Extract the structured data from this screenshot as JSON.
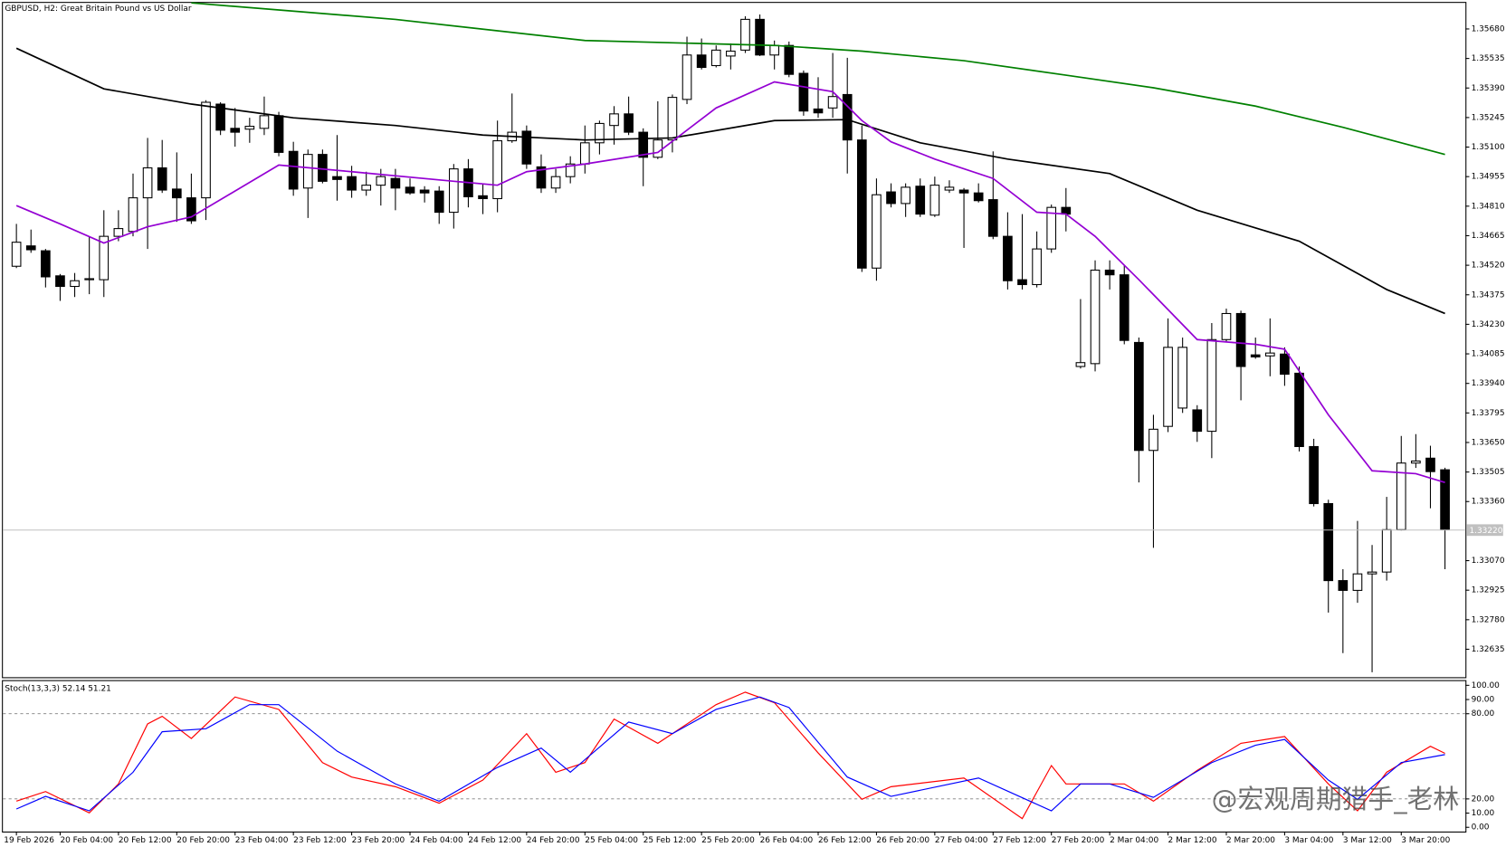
{
  "chart_data": [
    {
      "type": "candlestick",
      "title": "GBPUSD, H2:  Great Britain Pound vs US Dollar",
      "categories": [
        "19 Feb 2026",
        null,
        null,
        "20 Feb 04:00",
        null,
        null,
        null,
        "20 Feb 12:00",
        null,
        null,
        null,
        "20 Feb 20:00",
        null,
        null,
        null,
        "23 Feb 04:00",
        null,
        null,
        null,
        "23 Feb 12:00",
        null,
        null,
        null,
        "23 Feb 20:00",
        null,
        null,
        null,
        "24 Feb 04:00",
        null,
        null,
        null,
        "24 Feb 12:00",
        null,
        null,
        null,
        "24 Feb 20:00",
        null,
        null,
        null,
        "25 Feb 04:00",
        null,
        null,
        null,
        "25 Feb 12:00",
        null,
        null,
        null,
        "25 Feb 20:00",
        null,
        null,
        null,
        "26 Feb 04:00",
        null,
        null,
        null,
        "26 Feb 12:00",
        null,
        null,
        null,
        "26 Feb 20:00",
        null,
        null,
        null,
        "27 Feb 04:00",
        null,
        null,
        null,
        "27 Feb 12:00",
        null,
        null,
        null,
        "27 Feb 20:00",
        null,
        null,
        null,
        "2 Mar 04:00",
        null,
        null,
        null,
        "2 Mar 12:00",
        null,
        null,
        null,
        "2 Mar 20:00",
        null,
        null,
        null,
        "3 Mar 04:00",
        null,
        null,
        null,
        "3 Mar 12:00",
        null,
        null,
        null,
        "3 Mar 20:00",
        null,
        null,
        null
      ],
      "open": [
        1.34515,
        1.34615,
        1.34591,
        1.34468,
        1.34416,
        1.34449,
        1.34449,
        1.34662,
        1.34686,
        1.34851,
        1.34998,
        1.34894,
        1.34851,
        1.34851,
        1.35311,
        1.35192,
        1.35188,
        1.35192,
        1.35254,
        1.35079,
        1.34899,
        1.35064,
        1.34955,
        1.34955,
        1.34889,
        1.34913,
        1.34946,
        1.34903,
        1.34889,
        1.34884,
        1.3478,
        1.34993,
        1.34861,
        1.34847,
        1.35131,
        1.35178,
        1.35003,
        1.34899,
        1.34955,
        1.35017,
        1.35121,
        1.35206,
        1.35263,
        1.35173,
        1.3505,
        1.35135,
        1.35334,
        1.35552,
        1.355,
        1.35547,
        1.35576,
        1.35727,
        1.35552,
        1.35599,
        1.35462,
        1.35287,
        1.35292,
        1.35358,
        1.35135,
        1.34506,
        1.3488,
        1.34823,
        1.34908,
        1.34766,
        1.34889,
        1.34889,
        1.34875,
        1.34842,
        1.34662,
        1.34449,
        1.34425,
        1.346,
        1.34804,
        1.34023,
        1.34037,
        1.34496,
        1.34473,
        1.34141,
        1.33611,
        1.33729,
        1.33819,
        1.3381,
        1.33705,
        1.34155,
        1.34283,
        1.3408,
        1.34075,
        1.34084,
        1.3399,
        1.3363,
        1.3335,
        1.32972,
        1.32924,
        1.33005,
        1.33014,
        1.33222,
        1.33549,
        1.33573,
        1.33516
      ],
      "high": [
        1.34723,
        1.34695,
        1.346,
        1.34477,
        1.34482,
        1.34662,
        1.3479,
        1.3479,
        1.3497,
        1.35145,
        1.35135,
        1.35074,
        1.3497,
        1.3533,
        1.3532,
        1.35292,
        1.35244,
        1.35348,
        1.35273,
        1.35126,
        1.35088,
        1.35088,
        1.35159,
        1.35008,
        1.34979,
        1.34993,
        1.34993,
        1.34946,
        1.34908,
        1.34908,
        1.35017,
        1.35041,
        1.34922,
        1.3523,
        1.35363,
        1.35206,
        1.35064,
        1.34993,
        1.35055,
        1.35206,
        1.3523,
        1.35301,
        1.35348,
        1.35192,
        1.35325,
        1.35358,
        1.35642,
        1.35633,
        1.35599,
        1.35609,
        1.35742,
        1.35751,
        1.35623,
        1.35618,
        1.35476,
        1.35443,
        1.35562,
        1.35538,
        1.35206,
        1.34946,
        1.34922,
        1.34922,
        1.34946,
        1.34955,
        1.34937,
        1.34899,
        1.34922,
        1.35079,
        1.3478,
        1.34771,
        1.34686,
        1.34818,
        1.34899,
        1.34354,
        1.34544,
        1.34544,
        1.3452,
        1.34165,
        1.33786,
        1.34259,
        1.34165,
        1.33833,
        1.34236,
        1.34307,
        1.34297,
        1.34165,
        1.34259,
        1.34117,
        1.34023,
        1.33668,
        1.33369,
        1.33028,
        1.33265,
        1.33147,
        1.33383,
        1.33682,
        1.33691,
        1.33634,
        1.33526
      ],
      "low": [
        1.34506,
        1.34581,
        1.34411,
        1.34345,
        1.34364,
        1.34378,
        1.34364,
        1.34638,
        1.34662,
        1.346,
        1.34875,
        1.34733,
        1.34723,
        1.34742,
        1.35159,
        1.35102,
        1.35121,
        1.35159,
        1.35055,
        1.34861,
        1.34752,
        1.34922,
        1.34837,
        1.34851,
        1.34861,
        1.34813,
        1.3479,
        1.34866,
        1.34828,
        1.34723,
        1.347,
        1.34804,
        1.34771,
        1.3478,
        1.35121,
        1.34993,
        1.34875,
        1.34875,
        1.34922,
        1.3497,
        1.35064,
        1.35112,
        1.35159,
        1.34908,
        1.35041,
        1.35074,
        1.35311,
        1.35481,
        1.35491,
        1.35481,
        1.35562,
        1.35547,
        1.35481,
        1.35443,
        1.35254,
        1.35244,
        1.35244,
        1.3497,
        1.34487,
        1.34444,
        1.34804,
        1.34757,
        1.34757,
        1.34757,
        1.34875,
        1.34605,
        1.34828,
        1.34648,
        1.34401,
        1.34401,
        1.34411,
        1.34581,
        1.34686,
        1.34013,
        1.33999,
        1.34401,
        1.34132,
        1.33454,
        1.33133,
        1.33701,
        1.33795,
        1.33653,
        1.33573,
        1.34141,
        1.33857,
        1.34061,
        1.33975,
        1.33928,
        1.33606,
        1.33336,
        1.32815,
        1.32616,
        1.32863,
        1.32522,
        1.32972,
        1.33218,
        1.33525,
        1.33327,
        1.33028
      ],
      "close": [
        1.34633,
        1.34596,
        1.34463,
        1.34416,
        1.34444,
        1.34454,
        1.34662,
        1.347,
        1.34851,
        1.34998,
        1.34889,
        1.34851,
        1.34738,
        1.3532,
        1.35183,
        1.35173,
        1.35202,
        1.35254,
        1.35074,
        1.34894,
        1.35064,
        1.34932,
        1.34941,
        1.34889,
        1.34913,
        1.34955,
        1.34899,
        1.34875,
        1.34875,
        1.3478,
        1.34993,
        1.34856,
        1.34847,
        1.35131,
        1.35173,
        1.35017,
        1.34899,
        1.34955,
        1.35017,
        1.35121,
        1.35216,
        1.35263,
        1.35173,
        1.3505,
        1.35135,
        1.35344,
        1.35552,
        1.35491,
        1.35576,
        1.35571,
        1.35727,
        1.35552,
        1.35599,
        1.35457,
        1.35277,
        1.35268,
        1.35348,
        1.35135,
        1.34506,
        1.34866,
        1.34823,
        1.34903,
        1.34771,
        1.34913,
        1.34903,
        1.34875,
        1.34837,
        1.34662,
        1.34444,
        1.34425,
        1.346,
        1.34804,
        1.34771,
        1.34042,
        1.34496,
        1.34473,
        1.34151,
        1.33611,
        1.33715,
        1.34117,
        1.34117,
        1.33705,
        1.34155,
        1.34283,
        1.34023,
        1.3407,
        1.34089,
        1.33985,
        1.3363,
        1.3335,
        1.32972,
        1.32924,
        1.33005,
        1.33014,
        1.33222,
        1.33549,
        1.33559,
        1.33507,
        1.33222
      ],
      "up_color": "#ffffff",
      "down_color": "#000000",
      "wick_color": "#000000",
      "overlays": [
        {
          "color": "#008000",
          "x": [
            12,
            26,
            39,
            52,
            58,
            65,
            72,
            78,
            85,
            91,
            98
          ],
          "values": [
            1.35808,
            1.35727,
            1.35623,
            1.35599,
            1.35571,
            1.35524,
            1.35453,
            1.35391,
            1.35301,
            1.35197,
            1.35064
          ]
        },
        {
          "color": "#000000",
          "x": [
            0,
            6,
            12,
            19,
            26,
            32,
            39,
            45,
            52,
            57,
            62,
            68,
            75,
            81,
            88,
            94,
            98
          ],
          "values": [
            1.35585,
            1.35386,
            1.35311,
            1.35244,
            1.35206,
            1.35159,
            1.35135,
            1.35145,
            1.3523,
            1.35235,
            1.35121,
            1.35041,
            1.3497,
            1.3479,
            1.34638,
            1.34401,
            1.34283
          ]
        },
        {
          "color": "#9400d3",
          "x": [
            0,
            3,
            6,
            9,
            12,
            18,
            23,
            30,
            33,
            35,
            39,
            44,
            48,
            52,
            56,
            58,
            60,
            63,
            67,
            70,
            72,
            74,
            77,
            81,
            85,
            87,
            90,
            93,
            96,
            98
          ],
          "values": [
            1.34813,
            1.34723,
            1.34629,
            1.34709,
            1.34757,
            1.35012,
            1.34979,
            1.34932,
            1.34913,
            1.34979,
            1.35017,
            1.35074,
            1.35292,
            1.3542,
            1.35372,
            1.3523,
            1.35126,
            1.35041,
            1.34946,
            1.3478,
            1.34771,
            1.34662,
            1.34449,
            1.34155,
            1.34132,
            1.34108,
            1.33786,
            1.33511,
            1.33497,
            1.33454
          ]
        }
      ],
      "current_price": {
        "value": 1.3322,
        "label": "1.33220"
      },
      "ylim": [
        1.32493,
        1.35822
      ],
      "yticks": [
        {
          "value": 1.3568,
          "label": "1.35680"
        },
        1.35535,
        {
          "value": 1.3539,
          "label": "1.35390"
        },
        1.35245,
        {
          "value": 1.351,
          "label": "1.35100"
        },
        1.34955,
        {
          "value": 1.3481,
          "label": "1.34810"
        },
        1.34665,
        {
          "value": 1.3452,
          "label": "1.34520"
        },
        1.34375,
        {
          "value": 1.3423,
          "label": "1.34230"
        },
        1.34085,
        {
          "value": 1.3394,
          "label": "1.33940"
        },
        1.33795,
        {
          "value": 1.3365,
          "label": "1.33650"
        },
        1.33505,
        {
          "value": 1.3336,
          "label": "1.33360"
        },
        {
          "value": 1.3307,
          "label": "1.33070"
        },
        1.32925,
        {
          "value": 1.3278,
          "label": "1.32780"
        },
        1.32635
      ]
    },
    {
      "type": "line",
      "title": "Stoch(13,3,3) 52.14 51.21",
      "series": [
        {
          "color": "#ff0000",
          "x": [
            0,
            2,
            5,
            7,
            9,
            10,
            12,
            15,
            18,
            21,
            23,
            26,
            29,
            32,
            35,
            37,
            39,
            41,
            44,
            48,
            50,
            52,
            55,
            58,
            60,
            65,
            69,
            71,
            72,
            76,
            78,
            81,
            84,
            87,
            90,
            92,
            94,
            97,
            98
          ],
          "values": [
            18.4,
            25.2,
            10.2,
            30.6,
            72.8,
            78.2,
            62.6,
            91.8,
            83.0,
            45.6,
            35.4,
            28.6,
            17.0,
            33.3,
            66.0,
            38.8,
            45.6,
            76.2,
            59.2,
            86.4,
            95.2,
            87.8,
            52.4,
            19.7,
            28.6,
            34.7,
            6.1,
            43.5,
            30.6,
            30.6,
            18.4,
            40.1,
            59.2,
            63.9,
            30.6,
            11.6,
            38.8,
            57.1,
            52.14
          ]
        },
        {
          "color": "#0000ff",
          "x": [
            0,
            2,
            5,
            8,
            10,
            13,
            16,
            18,
            22,
            26,
            29,
            33,
            36,
            38,
            42,
            45,
            48,
            51,
            53,
            57,
            60,
            66,
            71,
            73,
            75,
            78,
            82,
            85,
            87,
            90,
            92,
            95,
            98
          ],
          "values": [
            12.9,
            21.8,
            11.6,
            38.8,
            67.3,
            69.4,
            86.4,
            86.4,
            53.7,
            30.6,
            18.4,
            42.2,
            55.8,
            38.8,
            74.1,
            66.0,
            83.0,
            91.8,
            84.4,
            35.4,
            21.8,
            34.7,
            11.6,
            30.6,
            30.6,
            21.1,
            45.6,
            57.8,
            61.9,
            33.3,
            19.7,
            45.6,
            51.21
          ]
        }
      ],
      "levels": [
        80,
        20
      ],
      "ylim": [
        -3,
        103
      ],
      "yticks": [
        {
          "value": 100,
          "label": "100.00"
        },
        {
          "value": 90,
          "label": "90.00"
        },
        {
          "value": 80,
          "label": "80.00"
        },
        {
          "value": 20,
          "label": "20.00"
        },
        {
          "value": 10,
          "label": "10.00"
        },
        {
          "value": 0,
          "label": "0.00"
        }
      ]
    }
  ],
  "watermark": "@宏观周期猎手_老林"
}
